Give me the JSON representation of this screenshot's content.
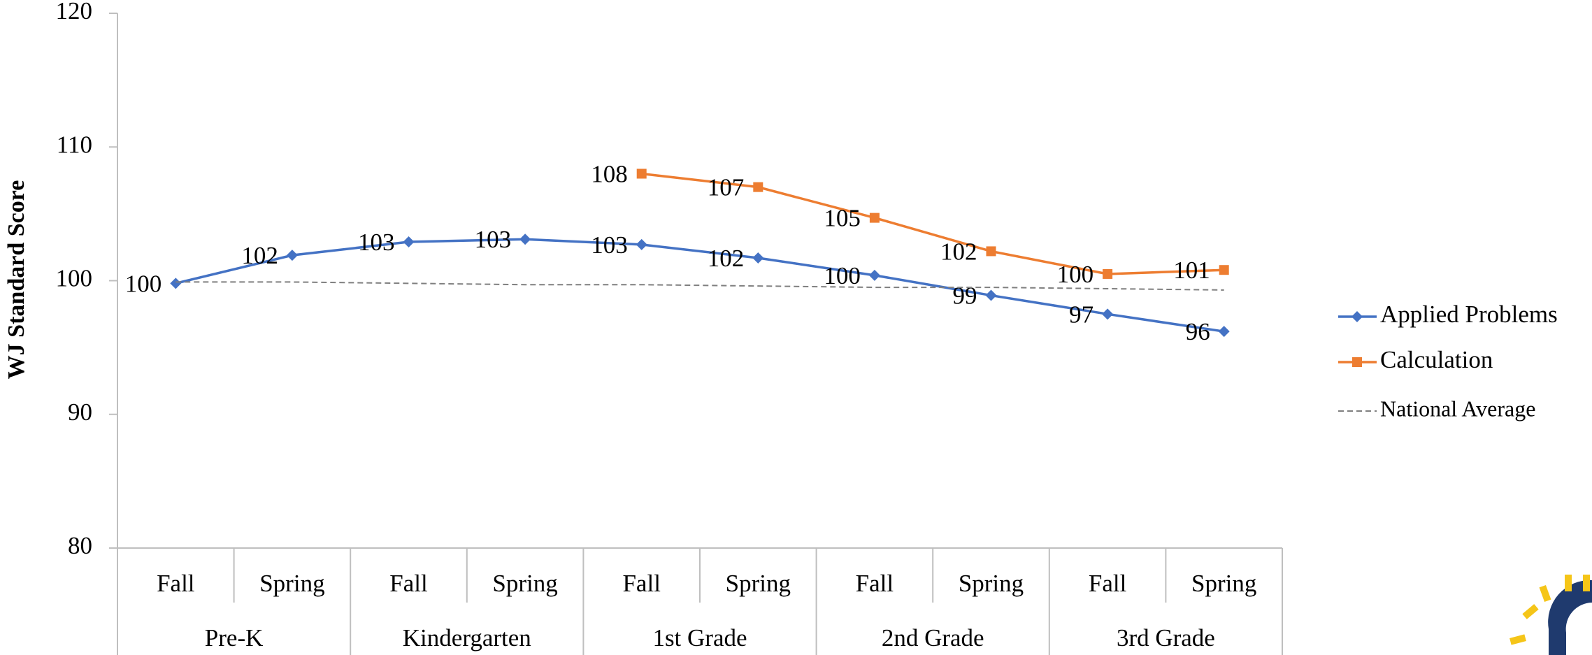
{
  "chart_data": {
    "type": "line",
    "y_label": "WJ Standard Score",
    "categories": [
      "Fall",
      "Spring",
      "Fall",
      "Spring",
      "Fall",
      "Spring",
      "Fall",
      "Spring",
      "Fall",
      "Spring"
    ],
    "groups": [
      "Pre-K",
      "Kindergarten",
      "1st Grade",
      "2nd Grade",
      "3rd Grade"
    ],
    "series": [
      {
        "name": "Applied Problems",
        "color": "#4472c4",
        "marker": "diamond",
        "values": [
          99.8,
          101.9,
          102.9,
          103.1,
          102.7,
          101.7,
          100.4,
          98.9,
          97.5,
          96.2
        ],
        "value_labels": [
          "100",
          "102",
          "103",
          "103",
          "103",
          "102",
          "100",
          "99",
          "97",
          "96"
        ]
      },
      {
        "name": "Calculation",
        "color": "#ed7d31",
        "marker": "square",
        "values": [
          null,
          null,
          null,
          null,
          108.0,
          107.0,
          104.7,
          102.2,
          100.5,
          100.8
        ],
        "value_labels": [
          null,
          null,
          null,
          null,
          "108",
          "107",
          "105",
          "102",
          "100",
          "101"
        ]
      },
      {
        "name": "National Average",
        "color": "#7f7f7f",
        "dashed": true,
        "values": [
          99.9,
          99.9,
          99.8,
          99.7,
          99.7,
          99.6,
          99.5,
          99.5,
          99.4,
          99.3
        ]
      }
    ],
    "ylim": [
      80,
      120
    ],
    "yticks": [
      80,
      90,
      100,
      110,
      120
    ],
    "grid": false,
    "legend": "right"
  }
}
